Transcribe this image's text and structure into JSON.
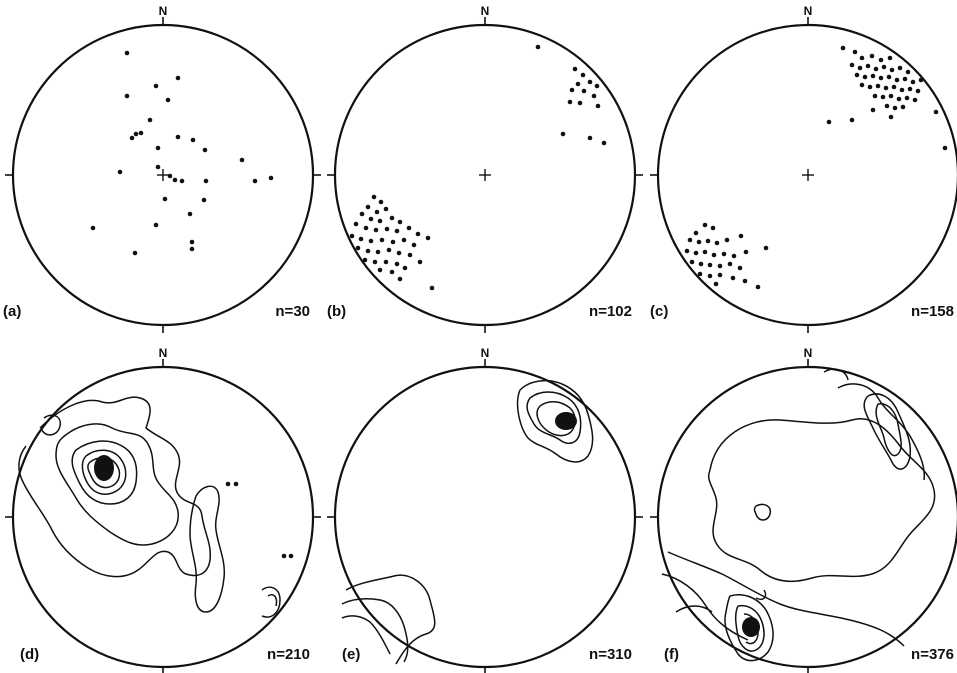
{
  "colors": {
    "ink": "#111111",
    "background": "#ffffff"
  },
  "panels": [
    {
      "id": "a",
      "label": "(a)",
      "north": "N",
      "count": "n=30",
      "kind": "scatter"
    },
    {
      "id": "b",
      "label": "(b)",
      "north": "N",
      "count": "n=102",
      "kind": "scatter"
    },
    {
      "id": "c",
      "label": "(c)",
      "north": "N",
      "count": "n=158",
      "kind": "scatter"
    },
    {
      "id": "d",
      "label": "(d)",
      "north": "N",
      "count": "n=210",
      "kind": "contour"
    },
    {
      "id": "e",
      "label": "(e)",
      "north": "N",
      "count": "n=310",
      "kind": "contour"
    },
    {
      "id": "f",
      "label": "(f)",
      "north": "N",
      "count": "n=376",
      "kind": "contour"
    }
  ]
}
